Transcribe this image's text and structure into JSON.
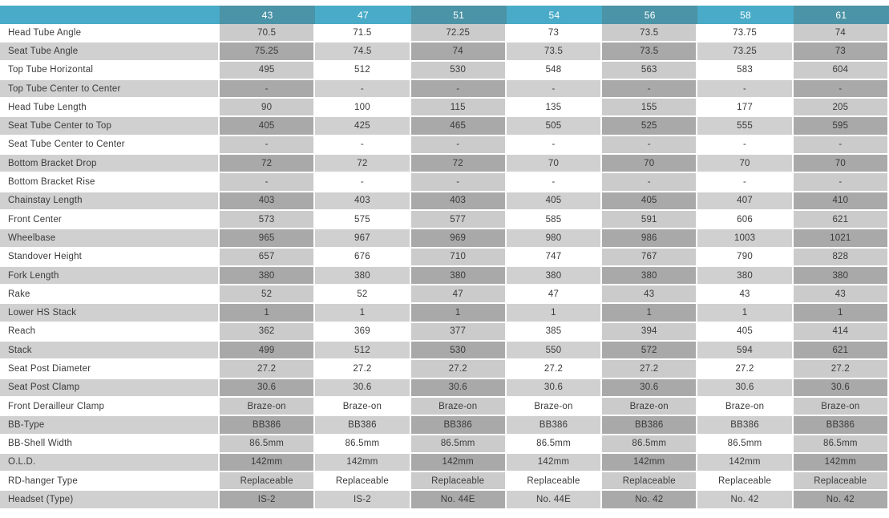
{
  "chart_data": {
    "type": "table",
    "corner_label": "",
    "columns": [
      "43",
      "47",
      "51",
      "54",
      "56",
      "58",
      "61"
    ],
    "rows": [
      {
        "label": "Head Tube Angle",
        "values": [
          "70.5",
          "71.5",
          "72.25",
          "73",
          "73.5",
          "73.75",
          "74"
        ]
      },
      {
        "label": "Seat Tube Angle",
        "values": [
          "75.25",
          "74.5",
          "74",
          "73.5",
          "73.5",
          "73.25",
          "73"
        ]
      },
      {
        "label": "Top Tube Horizontal",
        "values": [
          "495",
          "512",
          "530",
          "548",
          "563",
          "583",
          "604"
        ]
      },
      {
        "label": "Top Tube Center to Center",
        "values": [
          "-",
          "-",
          "-",
          "-",
          "-",
          "-",
          "-"
        ]
      },
      {
        "label": "Head Tube Length",
        "values": [
          "90",
          "100",
          "115",
          "135",
          "155",
          "177",
          "205"
        ]
      },
      {
        "label": "Seat Tube Center to Top",
        "values": [
          "405",
          "425",
          "465",
          "505",
          "525",
          "555",
          "595"
        ]
      },
      {
        "label": "Seat Tube Center to Center",
        "values": [
          "-",
          "-",
          "-",
          "-",
          "-",
          "-",
          "-"
        ]
      },
      {
        "label": "Bottom Bracket Drop",
        "values": [
          "72",
          "72",
          "72",
          "70",
          "70",
          "70",
          "70"
        ]
      },
      {
        "label": "Bottom Bracket Rise",
        "values": [
          "-",
          "-",
          "-",
          "-",
          "-",
          "-",
          "-"
        ]
      },
      {
        "label": "Chainstay Length",
        "values": [
          "403",
          "403",
          "403",
          "405",
          "405",
          "407",
          "410"
        ]
      },
      {
        "label": "Front Center",
        "values": [
          "573",
          "575",
          "577",
          "585",
          "591",
          "606",
          "621"
        ]
      },
      {
        "label": "Wheelbase",
        "values": [
          "965",
          "967",
          "969",
          "980",
          "986",
          "1003",
          "1021"
        ]
      },
      {
        "label": "Standover Height",
        "values": [
          "657",
          "676",
          "710",
          "747",
          "767",
          "790",
          "828"
        ]
      },
      {
        "label": "Fork Length",
        "values": [
          "380",
          "380",
          "380",
          "380",
          "380",
          "380",
          "380"
        ]
      },
      {
        "label": "Rake",
        "values": [
          "52",
          "52",
          "47",
          "47",
          "43",
          "43",
          "43"
        ]
      },
      {
        "label": "Lower HS Stack",
        "values": [
          "1",
          "1",
          "1",
          "1",
          "1",
          "1",
          "1"
        ]
      },
      {
        "label": "Reach",
        "values": [
          "362",
          "369",
          "377",
          "385",
          "394",
          "405",
          "414"
        ]
      },
      {
        "label": "Stack",
        "values": [
          "499",
          "512",
          "530",
          "550",
          "572",
          "594",
          "621"
        ]
      },
      {
        "label": "Seat Post Diameter",
        "values": [
          "27.2",
          "27.2",
          "27.2",
          "27.2",
          "27.2",
          "27.2",
          "27.2"
        ]
      },
      {
        "label": "Seat Post Clamp",
        "values": [
          "30.6",
          "30.6",
          "30.6",
          "30.6",
          "30.6",
          "30.6",
          "30.6"
        ]
      },
      {
        "label": "Front Derailleur Clamp",
        "values": [
          "Braze-on",
          "Braze-on",
          "Braze-on",
          "Braze-on",
          "Braze-on",
          "Braze-on",
          "Braze-on"
        ]
      },
      {
        "label": "BB-Type",
        "values": [
          "BB386",
          "BB386",
          "BB386",
          "BB386",
          "BB386",
          "BB386",
          "BB386"
        ]
      },
      {
        "label": "BB-Shell Width",
        "values": [
          "86.5mm",
          "86.5mm",
          "86.5mm",
          "86.5mm",
          "86.5mm",
          "86.5mm",
          "86.5mm"
        ]
      },
      {
        "label": "O.L.D.",
        "values": [
          "142mm",
          "142mm",
          "142mm",
          "142mm",
          "142mm",
          "142mm",
          "142mm"
        ]
      },
      {
        "label": "RD-hanger Type",
        "values": [
          "Replaceable",
          "Replaceable",
          "Replaceable",
          "Replaceable",
          "Replaceable",
          "Replaceable",
          "Replaceable"
        ]
      },
      {
        "label": "Headset (Type)",
        "values": [
          "IS-2",
          "IS-2",
          "No. 44E",
          "No. 44E",
          "No. 42",
          "No. 42",
          "No. 42"
        ]
      }
    ]
  },
  "colors": {
    "header_teal_light": "#49abc8",
    "header_teal_dark": "#4b93a6",
    "row_stripe_gray": "#d0d0d0",
    "column_shade_gray": "#cbcbcb",
    "row_and_column_gray": "#a9a9a9",
    "cell_text": "#3a3a3a",
    "header_text": "#ffffff",
    "background": "#ffffff"
  }
}
